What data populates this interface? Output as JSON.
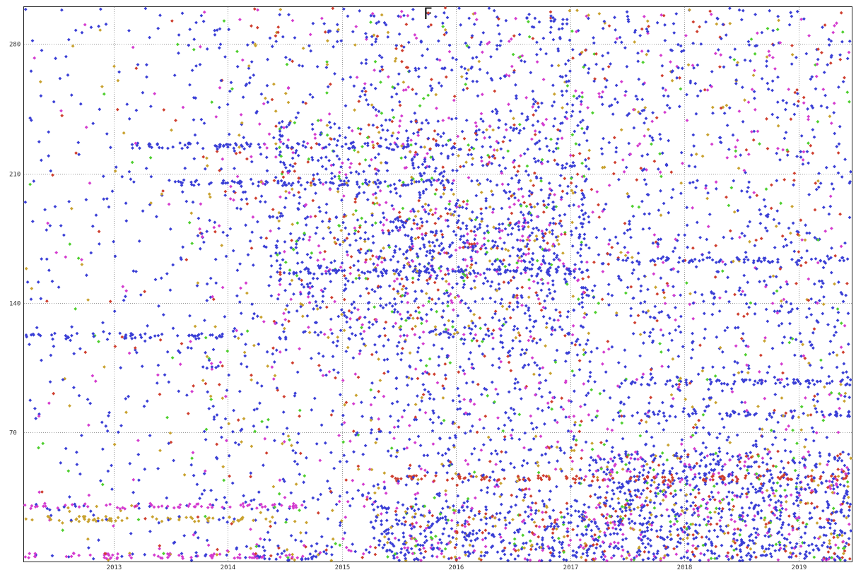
{
  "chart_data": {
    "type": "scatter",
    "title": "F",
    "xlabel": "",
    "ylabel": "",
    "x_axis": {
      "type": "date",
      "range": [
        "2012-03-20",
        "2019-06-20"
      ],
      "ticks": [
        "2013",
        "2014",
        "2015",
        "2016",
        "2017",
        "2018",
        "2019"
      ],
      "tick_dates": [
        "2013-01-01",
        "2014-01-01",
        "2015-01-01",
        "2016-01-01",
        "2017-01-01",
        "2018-01-01",
        "2019-01-01"
      ]
    },
    "y_axis": {
      "range": [
        0,
        300
      ],
      "ticks": [
        70,
        140,
        210,
        280
      ]
    },
    "grid": true,
    "grid_style": "dotted",
    "legend": "none",
    "marker": "diamond",
    "series_colors": [
      "#3a3fd6",
      "#d43ccf",
      "#cf3f2f",
      "#c9a230",
      "#4fcf2f"
    ],
    "density_regions": [
      {
        "from": "2012-03-20",
        "to": "2013-09-01",
        "y_range": [
          0,
          300
        ],
        "density": 0.35
      },
      {
        "from": "2013-09-01",
        "to": "2015-04-01",
        "y_range": [
          0,
          300
        ],
        "density": 0.8
      },
      {
        "from": "2015-04-01",
        "to": "2017-03-01",
        "y_range": [
          0,
          300
        ],
        "density": 1.3
      },
      {
        "from": "2017-03-01",
        "to": "2019-06-20",
        "y_range": [
          0,
          300
        ],
        "density": 1.0
      },
      {
        "from": "2015-04-01",
        "to": "2017-03-01",
        "y_range": [
          0,
          30
        ],
        "density": 2.6
      },
      {
        "from": "2017-03-01",
        "to": "2019-06-20",
        "y_range": [
          0,
          60
        ],
        "density": 3.2
      },
      {
        "from": "2013-09-01",
        "to": "2015-04-01",
        "y_range": [
          0,
          10
        ],
        "density": 1.4
      },
      {
        "from": "2014-06-01",
        "to": "2017-03-01",
        "y_range": [
          120,
          240
        ],
        "density": 1.2
      },
      {
        "from": "2015-07-01",
        "to": "2016-12-01",
        "y_range": [
          150,
          190
        ],
        "density": 1.6
      }
    ],
    "horizontal_bands": [
      {
        "from": "2012-03-20",
        "to": "2014-09-01",
        "y": 30,
        "color": "#d43ccf"
      },
      {
        "from": "2012-03-20",
        "to": "2014-09-01",
        "y": 3,
        "color": "#d43ccf"
      },
      {
        "from": "2012-03-20",
        "to": "2014-06-01",
        "y": 23,
        "color": "#c9a230"
      },
      {
        "from": "2012-03-20",
        "to": "2014-01-01",
        "y": 122,
        "color": "#3a3fd6"
      },
      {
        "from": "2013-06-01",
        "to": "2016-01-01",
        "y": 205,
        "color": "#3a3fd6"
      },
      {
        "from": "2013-03-01",
        "to": "2016-01-01",
        "y": 225,
        "color": "#3a3fd6"
      },
      {
        "from": "2014-06-01",
        "to": "2017-03-01",
        "y": 157,
        "color": "#3a3fd6"
      },
      {
        "from": "2017-06-01",
        "to": "2019-06-20",
        "y": 163,
        "color": "#3a3fd6"
      },
      {
        "from": "2017-06-01",
        "to": "2019-06-20",
        "y": 80,
        "color": "#3a3fd6"
      },
      {
        "from": "2017-06-01",
        "to": "2019-06-20",
        "y": 97,
        "color": "#3a3fd6"
      },
      {
        "from": "2015-06-01",
        "to": "2019-06-20",
        "y": 45,
        "color": "#cf3f2f"
      }
    ]
  }
}
